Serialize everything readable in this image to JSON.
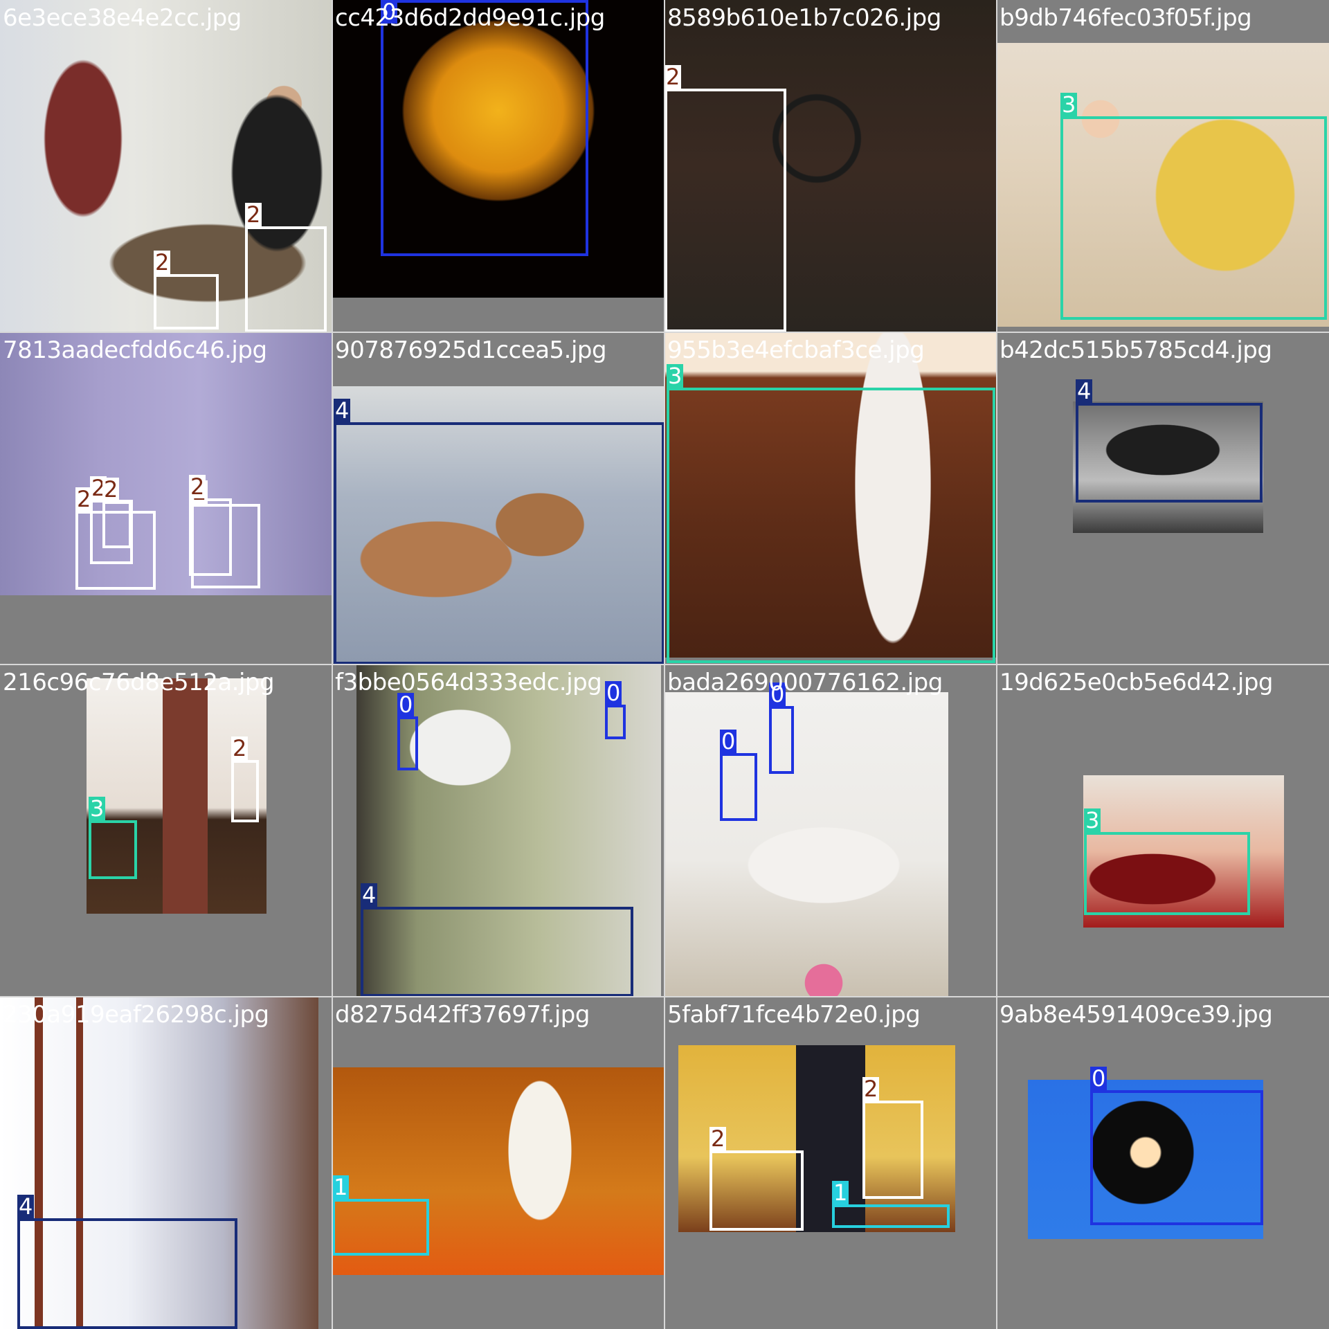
{
  "classes": {
    "0": {
      "color": "#1f33e0",
      "text": "#ffffff"
    },
    "1": {
      "color": "#27d0de",
      "text": "#ffffff"
    },
    "2": {
      "color": "#ffffff",
      "text": "#7a2a14"
    },
    "3": {
      "color": "#2ad3a8",
      "text": "#ffffff"
    },
    "4": {
      "color": "#182c78",
      "text": "#ffffff"
    }
  },
  "tiles": [
    {
      "filename": "6e3ece38e4e2cc.jpg",
      "photo": "kitchen-two-men",
      "boxes": [
        {
          "cls": "2",
          "label": "2"
        },
        {
          "cls": "2",
          "label": "2"
        }
      ]
    },
    {
      "filename": "cc423d6d2dd9e91c.jpg",
      "photo": "glowing-lamp",
      "boxes": [
        {
          "cls": "0",
          "label": "0"
        }
      ]
    },
    {
      "filename": "8589b610e1b7c026.jpg",
      "photo": "dark-room-chair",
      "boxes": [
        {
          "cls": "2",
          "label": "2"
        }
      ]
    },
    {
      "filename": "b9db746fec03f05f.jpg",
      "photo": "girl-gift-sofa",
      "boxes": [
        {
          "cls": "3",
          "label": "3"
        }
      ]
    },
    {
      "filename": "7813aadecfdd6c46.jpg",
      "photo": "purple-dining-room",
      "boxes": [
        {
          "cls": "2",
          "label": "2"
        },
        {
          "cls": "2",
          "label": "2"
        },
        {
          "cls": "2",
          "label": "2"
        },
        {
          "cls": "2",
          "label": "2"
        },
        {
          "cls": "2",
          "label": "2"
        }
      ]
    },
    {
      "filename": "907876925d1ccea5.jpg",
      "photo": "cats-on-bed",
      "boxes": [
        {
          "cls": "4",
          "label": "4"
        }
      ]
    },
    {
      "filename": "955b3e4efcbaf3ce.jpg",
      "photo": "leather-couch-stocking",
      "boxes": [
        {
          "cls": "3",
          "label": "3"
        }
      ]
    },
    {
      "filename": "b42dc515b5785cd4.jpg",
      "photo": "bw-sleeping-bed",
      "boxes": [
        {
          "cls": "4",
          "label": "4"
        }
      ]
    },
    {
      "filename": "216c96c76d8e512a.jpg",
      "photo": "brick-fireplace-living",
      "boxes": [
        {
          "cls": "3",
          "label": "3"
        },
        {
          "cls": "2",
          "label": "2"
        }
      ]
    },
    {
      "filename": "f3bbe0564d333edc.jpg",
      "photo": "mural-bedroom",
      "boxes": [
        {
          "cls": "0",
          "label": "0"
        },
        {
          "cls": "0",
          "label": "0"
        },
        {
          "cls": "4",
          "label": "4"
        }
      ]
    },
    {
      "filename": "bada269000776162.jpg",
      "photo": "white-sofa-mirrors",
      "boxes": [
        {
          "cls": "0",
          "label": "0"
        },
        {
          "cls": "0",
          "label": "0"
        }
      ]
    },
    {
      "filename": "19d625e0cb5e6d42.jpg",
      "photo": "red-chesterfield-dog",
      "boxes": [
        {
          "cls": "3",
          "label": "3"
        }
      ]
    },
    {
      "filename": "230a919eaf26298c.jpg",
      "photo": "white-wall-mirror",
      "boxes": [
        {
          "cls": "4",
          "label": "4"
        }
      ]
    },
    {
      "filename": "d8275d42ff37697f.jpg",
      "photo": "panel-speaker-stage",
      "boxes": [
        {
          "cls": "1",
          "label": "1"
        }
      ]
    },
    {
      "filename": "5fabf71fce4b72e0.jpg",
      "photo": "yellow-room-tv",
      "boxes": [
        {
          "cls": "2",
          "label": "2"
        },
        {
          "cls": "2",
          "label": "2"
        },
        {
          "cls": "1",
          "label": "1"
        }
      ]
    },
    {
      "filename": "9ab8e4591409ce39.jpg",
      "photo": "street-lamp-blue-sky",
      "boxes": [
        {
          "cls": "0",
          "label": "0"
        }
      ]
    }
  ]
}
